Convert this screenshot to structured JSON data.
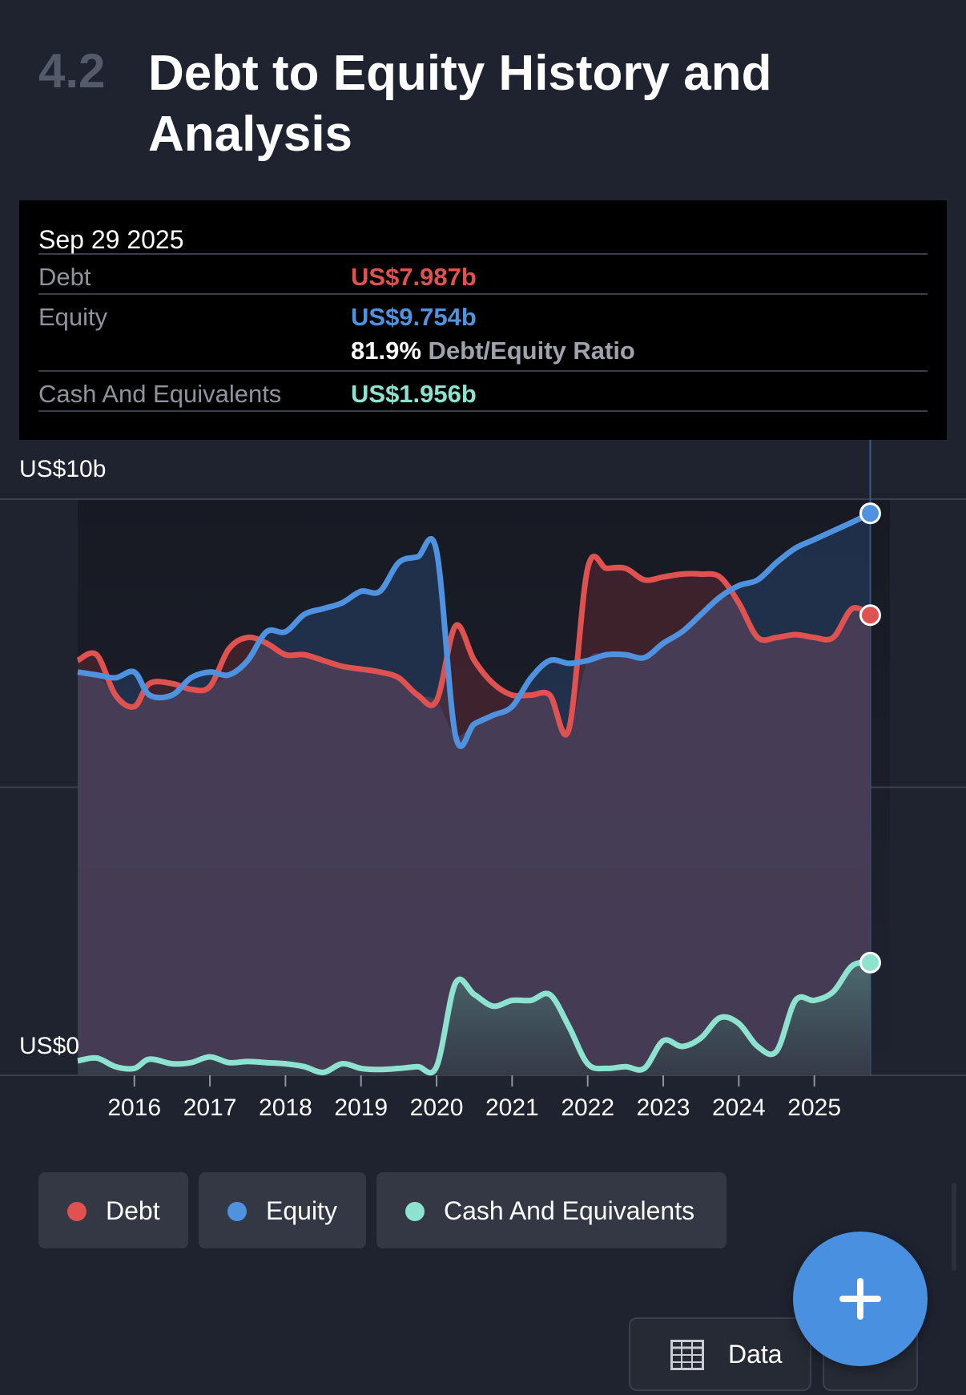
{
  "section": {
    "number": "4.2",
    "title": "Debt to Equity History and Analysis"
  },
  "tooltip": {
    "date": "Sep 29 2025",
    "debt_label": "Debt",
    "debt_value": "US$7.987b",
    "equity_label": "Equity",
    "equity_value": "US$9.754b",
    "ratio_value": "81.9%",
    "ratio_label": "Debt/Equity Ratio",
    "cash_label": "Cash And Equivalents",
    "cash_value": "US$1.956b"
  },
  "colors": {
    "debt": "#e05250",
    "equity": "#4f92e0",
    "cash": "#8ee3d0",
    "background": "#1f2330"
  },
  "legend": {
    "debt": "Debt",
    "equity": "Equity",
    "cash": "Cash And Equivalents"
  },
  "buttons": {
    "data_label": "Data",
    "fab_icon": "plus-icon",
    "data_icon": "table-icon"
  },
  "chart_data": {
    "type": "area",
    "y_top_label": "US$10b",
    "y_bottom_label": "US$0",
    "ylim": [
      0,
      10
    ],
    "y_unit": "US$ billions",
    "x_ticks": [
      "2016",
      "2017",
      "2018",
      "2019",
      "2020",
      "2021",
      "2022",
      "2023",
      "2024",
      "2025"
    ],
    "xlim": [
      2015.25,
      2026.0
    ],
    "grid": true,
    "legend_position": "bottom",
    "series": [
      {
        "name": "Debt",
        "color": "#e05250",
        "x": [
          2015.25,
          2015.5,
          2015.75,
          2016.0,
          2016.2,
          2016.5,
          2016.75,
          2017.0,
          2017.25,
          2017.5,
          2017.75,
          2018.0,
          2018.25,
          2018.5,
          2018.75,
          2019.0,
          2019.25,
          2019.5,
          2019.75,
          2020.0,
          2020.25,
          2020.5,
          2020.75,
          2021.0,
          2021.25,
          2021.5,
          2021.75,
          2022.0,
          2022.25,
          2022.5,
          2022.75,
          2023.0,
          2023.25,
          2023.5,
          2023.75,
          2024.0,
          2024.25,
          2024.5,
          2024.75,
          2025.0,
          2025.25,
          2025.5,
          2025.74
        ],
        "values": [
          7.2,
          7.3,
          6.6,
          6.4,
          6.8,
          6.8,
          6.7,
          6.75,
          7.4,
          7.6,
          7.5,
          7.3,
          7.3,
          7.2,
          7.1,
          7.05,
          7.0,
          6.9,
          6.6,
          6.5,
          7.8,
          7.2,
          6.8,
          6.6,
          6.6,
          6.6,
          6.0,
          8.8,
          8.8,
          8.8,
          8.6,
          8.65,
          8.7,
          8.7,
          8.65,
          8.2,
          7.6,
          7.6,
          7.65,
          7.6,
          7.6,
          8.1,
          7.987
        ]
      },
      {
        "name": "Equity",
        "color": "#4f92e0",
        "x": [
          2015.25,
          2015.5,
          2015.75,
          2016.0,
          2016.2,
          2016.5,
          2016.75,
          2017.0,
          2017.25,
          2017.5,
          2017.75,
          2018.0,
          2018.25,
          2018.5,
          2018.75,
          2019.0,
          2019.25,
          2019.5,
          2019.75,
          2020.0,
          2020.25,
          2020.5,
          2020.75,
          2021.0,
          2021.25,
          2021.5,
          2021.75,
          2022.0,
          2022.25,
          2022.5,
          2022.75,
          2023.0,
          2023.25,
          2023.5,
          2023.75,
          2024.0,
          2024.25,
          2024.5,
          2024.75,
          2025.0,
          2025.25,
          2025.5,
          2025.74
        ],
        "values": [
          7.0,
          6.95,
          6.9,
          7.0,
          6.6,
          6.6,
          6.9,
          7.0,
          6.95,
          7.2,
          7.7,
          7.7,
          8.0,
          8.1,
          8.2,
          8.4,
          8.4,
          8.9,
          9.0,
          9.1,
          5.9,
          6.1,
          6.25,
          6.4,
          6.9,
          7.2,
          7.15,
          7.2,
          7.3,
          7.3,
          7.25,
          7.5,
          7.7,
          8.0,
          8.3,
          8.5,
          8.6,
          8.9,
          9.15,
          9.3,
          9.45,
          9.6,
          9.754
        ]
      },
      {
        "name": "Cash And Equivalents",
        "color": "#8ee3d0",
        "x": [
          2015.25,
          2015.5,
          2015.75,
          2016.0,
          2016.2,
          2016.5,
          2016.75,
          2017.0,
          2017.25,
          2017.5,
          2017.75,
          2018.0,
          2018.25,
          2018.5,
          2018.75,
          2019.0,
          2019.25,
          2019.5,
          2019.75,
          2020.0,
          2020.25,
          2020.5,
          2020.75,
          2021.0,
          2021.25,
          2021.5,
          2021.75,
          2022.0,
          2022.25,
          2022.5,
          2022.75,
          2023.0,
          2023.25,
          2023.5,
          2023.75,
          2024.0,
          2024.25,
          2024.5,
          2024.75,
          2025.0,
          2025.25,
          2025.5,
          2025.74
        ],
        "values": [
          0.25,
          0.3,
          0.15,
          0.12,
          0.28,
          0.2,
          0.22,
          0.32,
          0.22,
          0.24,
          0.22,
          0.2,
          0.15,
          0.05,
          0.2,
          0.12,
          0.1,
          0.12,
          0.15,
          0.15,
          1.6,
          1.4,
          1.2,
          1.3,
          1.3,
          1.4,
          0.85,
          0.2,
          0.12,
          0.15,
          0.12,
          0.6,
          0.5,
          0.65,
          1.0,
          0.9,
          0.5,
          0.42,
          1.3,
          1.3,
          1.45,
          1.9,
          1.956
        ]
      }
    ]
  }
}
